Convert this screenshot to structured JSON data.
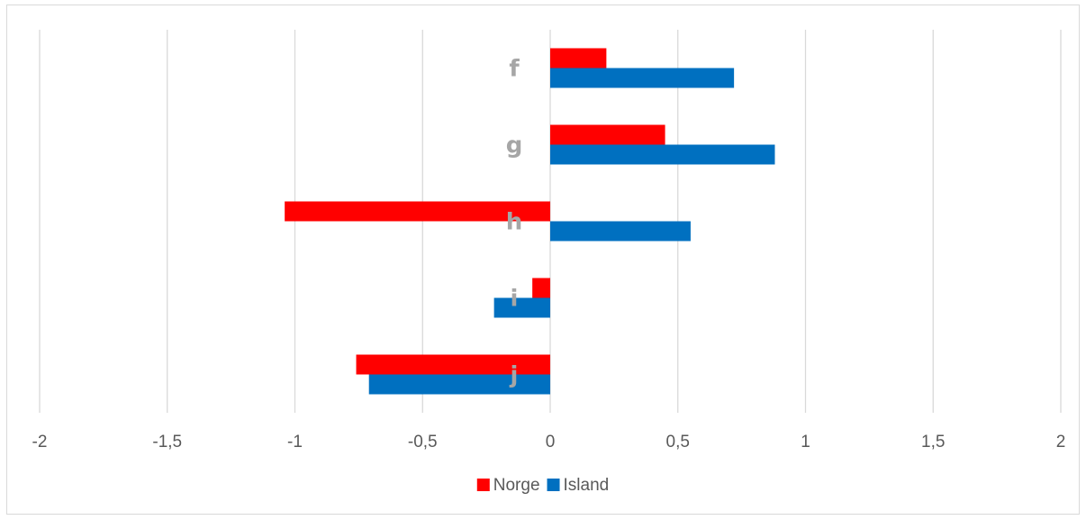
{
  "chart_data": {
    "type": "bar",
    "orientation": "horizontal",
    "categories": [
      "f",
      "g",
      "h",
      "i",
      "j"
    ],
    "series": [
      {
        "name": "Norge",
        "color": "#ff0000",
        "values": [
          0.22,
          0.45,
          -1.04,
          -0.07,
          -0.76
        ]
      },
      {
        "name": "Island",
        "color": "#0070c0",
        "values": [
          0.72,
          0.88,
          0.55,
          -0.22,
          -0.71
        ]
      }
    ],
    "xlim": [
      -2,
      2
    ],
    "x_ticks": [
      -2,
      -1.5,
      -1,
      -0.5,
      0,
      0.5,
      1,
      1.5,
      2
    ],
    "x_tick_labels": [
      "-2",
      "-1,5",
      "-1",
      "-0,5",
      "0",
      "0,5",
      "1",
      "1,5",
      "2"
    ],
    "grid": true,
    "legend_position": "bottom",
    "title": "",
    "xlabel": "",
    "ylabel": ""
  }
}
